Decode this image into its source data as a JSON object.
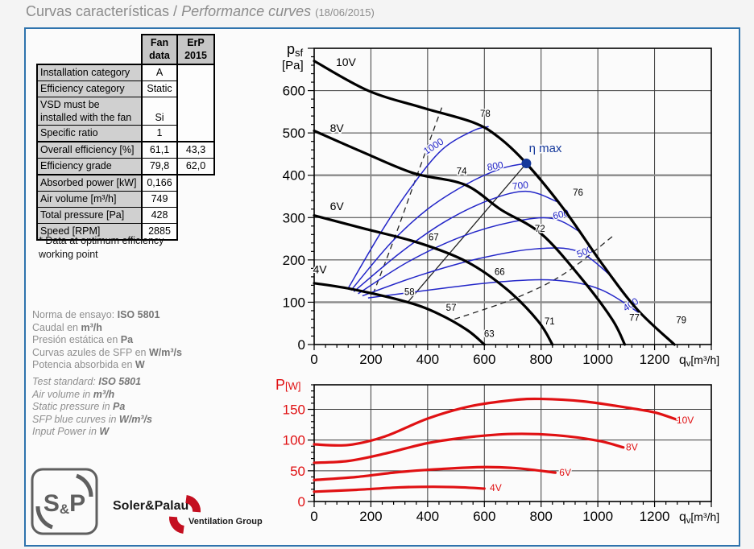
{
  "title": {
    "main": "Curvas características / ",
    "italic": "Performance curves ",
    "date": "(18/06/2015)"
  },
  "table": {
    "col_headers": [
      "Fan\ndata",
      "ErP\n2015"
    ],
    "rows": [
      {
        "label": "Installation category",
        "fan": "A",
        "erp": "",
        "erp_span": 4
      },
      {
        "label": "Efficiency category",
        "fan": "Static"
      },
      {
        "label": "VSD must be installed with the fan",
        "fan": "Si",
        "valign": "bottom"
      },
      {
        "label": "Specific ratio",
        "fan": "1"
      },
      {
        "label": "Overall efficiency [%]",
        "fan": "61,1",
        "erp": "43,3",
        "thick_top": true
      },
      {
        "label": "Efficiency grade",
        "fan": "79,8",
        "erp": "62,0",
        "erp_last": true
      },
      {
        "label": "Absorbed power [kW]",
        "fan": "0,166",
        "no_erp": true,
        "thick_top": true
      },
      {
        "label": "Air volume [m³/h]",
        "fan": "749",
        "no_erp": true
      },
      {
        "label": "Total pressure [Pa]",
        "fan": "428",
        "no_erp": true
      },
      {
        "label": "Speed [RPM]",
        "fan": "2885",
        "no_erp": true
      }
    ],
    "footnote_lines": [
      "* Data at optimum efficiency",
      "working point"
    ]
  },
  "notes_es": [
    {
      "t": "Norma de ensayo: ",
      "b": "ISO 5801"
    },
    {
      "t": "Caudal en ",
      "b": "m³/h"
    },
    {
      "t": "Presión estática en ",
      "b": "Pa"
    },
    {
      "t": "Curvas azules de SFP en ",
      "b": "W/m³/s"
    },
    {
      "t": "Potencia absorbida en ",
      "b": "W"
    }
  ],
  "notes_en": [
    {
      "t": "Test standard: ",
      "b": "ISO 5801"
    },
    {
      "t": "Air volume in ",
      "b": "m³/h"
    },
    {
      "t": "Static pressure in ",
      "b": "Pa"
    },
    {
      "t": "SFP blue curves in ",
      "b": "W/m³/s"
    },
    {
      "t": "Input Power in ",
      "b": "W"
    }
  ],
  "logo": {
    "sp": "S&P",
    "company": "Soler&Palau",
    "group": "Ventilation Group"
  },
  "chart_data": [
    {
      "type": "line",
      "name": "pressure_curves",
      "ylabel": {
        "main": "p",
        "sub": "sf",
        "unit_below": "[Pa]",
        "color": "#000000",
        "pos": [
          26,
          22
        ]
      },
      "xlabel": {
        "main": "q",
        "sub": "v",
        "unit": "[m³/h]",
        "color": "#000000"
      },
      "xlim": [
        0,
        1400
      ],
      "ylim": [
        0,
        700
      ],
      "x_ticks": [
        0,
        200,
        400,
        600,
        800,
        1000,
        1200
      ],
      "y_ticks": [
        0,
        100,
        200,
        300,
        400,
        500,
        600
      ],
      "grid_x": [
        200,
        400,
        600,
        800,
        1000,
        1200
      ],
      "grid_y": [
        200,
        300,
        500,
        600
      ],
      "grid_y_bold": [
        100,
        400
      ],
      "minor_x": 40,
      "major_x": 200,
      "minor_y": 20,
      "major_y": 100,
      "xtick_color": "#000000",
      "ytick_color": "#000000",
      "series_color": "#000000",
      "series_label_fs": 14,
      "series": [
        {
          "name": "4V",
          "points": [
            [
              0,
              145
            ],
            [
              140,
              130
            ],
            [
              330,
              100
            ],
            [
              440,
              72
            ],
            [
              540,
              34
            ],
            [
              600,
              0
            ]
          ],
          "label_at": [
            20,
            168
          ]
        },
        {
          "name": "6V",
          "points": [
            [
              0,
              305
            ],
            [
              170,
              275
            ],
            [
              370,
              240
            ],
            [
              540,
              195
            ],
            [
              680,
              130
            ],
            [
              790,
              55
            ],
            [
              840,
              0
            ]
          ],
          "label_at": [
            80,
            318
          ]
        },
        {
          "name": "8V",
          "points": [
            [
              0,
              505
            ],
            [
              170,
              455
            ],
            [
              350,
              405
            ],
            [
              530,
              378
            ],
            [
              660,
              318
            ],
            [
              800,
              262
            ],
            [
              940,
              158
            ],
            [
              1050,
              60
            ],
            [
              1095,
              0
            ]
          ],
          "label_at": [
            80,
            502
          ]
        },
        {
          "name": "10V",
          "points": [
            [
              0,
              670
            ],
            [
              190,
              600
            ],
            [
              380,
              560
            ],
            [
              560,
              525
            ],
            [
              650,
              490
            ],
            [
              748,
              428
            ],
            [
              880,
              320
            ],
            [
              1020,
              186
            ],
            [
              1140,
              82
            ],
            [
              1270,
              0
            ]
          ],
          "label_at": [
            112,
            658
          ]
        }
      ],
      "sfp": {
        "color": "#2326c8",
        "units": "W/m³/s",
        "curves": [
          {
            "value": 1000,
            "points": [
              [
                120,
                133
              ],
              [
                240,
                270
              ],
              [
                340,
                370
              ],
              [
                450,
                460
              ],
              [
                560,
                505
              ],
              [
                615,
                515
              ]
            ],
            "label_at": [
              427,
              462
            ],
            "rot": -33
          },
          {
            "value": 800,
            "points": [
              [
                130,
                128
              ],
              [
                270,
                240
              ],
              [
                400,
                320
              ],
              [
                540,
                380
              ],
              [
                660,
                416
              ],
              [
                748,
                428
              ]
            ],
            "label_at": [
              640,
              414
            ],
            "rot": -10
          },
          {
            "value": 700,
            "points": [
              [
                140,
                125
              ],
              [
                300,
                215
              ],
              [
                460,
                290
              ],
              [
                620,
                342
              ],
              [
                750,
                362
              ],
              [
                855,
                338
              ]
            ],
            "label_at": [
              728,
              368
            ],
            "rot": -6
          },
          {
            "value": 600,
            "points": [
              [
                155,
                120
              ],
              [
                330,
                195
              ],
              [
                520,
                255
              ],
              [
                700,
                290
              ],
              [
                840,
                298
              ],
              [
                940,
                265
              ]
            ],
            "label_at": [
              872,
              300
            ],
            "rot": -12
          },
          {
            "value": 500,
            "points": [
              [
                170,
                115
              ],
              [
                370,
                163
              ],
              [
                580,
                203
              ],
              [
                780,
                226
              ],
              [
                930,
                220
              ],
              [
                1050,
                160
              ]
            ],
            "label_at": [
              958,
              212
            ],
            "rot": -22
          },
          {
            "value": 400,
            "points": [
              [
                190,
                110
              ],
              [
                420,
                130
              ],
              [
                650,
                148
              ],
              [
                850,
                152
              ],
              [
                1010,
                130
              ],
              [
                1160,
                68
              ]
            ],
            "label_at": [
              1122,
              88
            ],
            "rot": -33
          }
        ]
      },
      "ref_lines": [
        {
          "dashed": false,
          "points": [
            [
              330,
              100
            ],
            [
              748,
              428
            ]
          ]
        },
        {
          "dashed": true,
          "points": [
            [
              450,
              560
            ],
            [
              360,
              395
            ],
            [
              285,
              255
            ],
            [
              208,
              120
            ]
          ]
        },
        {
          "dashed": true,
          "points": [
            [
              495,
              60
            ],
            [
              711,
              110
            ],
            [
              881,
              167
            ],
            [
              1060,
              260
            ]
          ]
        }
      ],
      "point_labels": [
        {
          "t": "78",
          "x": 603,
          "y": 538
        },
        {
          "t": "76",
          "x": 930,
          "y": 352
        },
        {
          "t": "79",
          "x": 1294,
          "y": 50
        },
        {
          "t": "74",
          "x": 520,
          "y": 402
        },
        {
          "t": "72",
          "x": 796,
          "y": 266
        },
        {
          "t": "77",
          "x": 1129,
          "y": 56
        },
        {
          "t": "67",
          "x": 421,
          "y": 246
        },
        {
          "t": "66",
          "x": 654,
          "y": 165
        },
        {
          "t": "71",
          "x": 830,
          "y": 48
        },
        {
          "t": "58",
          "x": 336,
          "y": 117
        },
        {
          "t": "57",
          "x": 483,
          "y": 80
        },
        {
          "t": "63",
          "x": 617,
          "y": 18
        }
      ],
      "eta_max": {
        "x": 748,
        "y": 428,
        "label": "η max",
        "label_at": [
          815,
          455
        ],
        "color": "#16399b"
      },
      "plot": {
        "l": 60,
        "r": 553,
        "t": 15,
        "b": 383
      }
    },
    {
      "type": "line",
      "name": "power_curves",
      "ylabel": {
        "main": "P",
        "unit_inline": "[W]",
        "color": "#e01113",
        "pos": [
          12,
          22
        ]
      },
      "xlabel": {
        "main": "q",
        "sub": "v",
        "unit": "[m³/h]",
        "color": "#000000"
      },
      "xlim": [
        0,
        1400
      ],
      "ylim": [
        0,
        190
      ],
      "x_ticks": [
        0,
        200,
        400,
        600,
        800,
        1000,
        1200
      ],
      "y_ticks": [
        0,
        50,
        100,
        150
      ],
      "grid_x": [
        200,
        400,
        600,
        800,
        1000,
        1200
      ],
      "grid_y": [
        50,
        100,
        150
      ],
      "grid_y_bold": [],
      "minor_x": 40,
      "major_x": 200,
      "minor_y": 10,
      "major_y": 50,
      "xtick_color": "#000000",
      "ytick_color": "#e01113",
      "series_color": "#e01113",
      "series_label_fs": 12,
      "series": [
        {
          "name": "4V",
          "points": [
            [
              0,
              16
            ],
            [
              150,
              19
            ],
            [
              300,
              23
            ],
            [
              420,
              24
            ],
            [
              520,
              23
            ],
            [
              600,
              21
            ]
          ],
          "label_at": [
            640,
            17
          ]
        },
        {
          "name": "6V",
          "points": [
            [
              0,
              35
            ],
            [
              150,
              40
            ],
            [
              300,
              48
            ],
            [
              450,
              53
            ],
            [
              600,
              56
            ],
            [
              720,
              54
            ],
            [
              850,
              47
            ]
          ],
          "label_at": [
            885,
            42
          ]
        },
        {
          "name": "8V",
          "points": [
            [
              0,
              63
            ],
            [
              120,
              66
            ],
            [
              250,
              78
            ],
            [
              400,
              95
            ],
            [
              550,
              105
            ],
            [
              700,
              110
            ],
            [
              850,
              108
            ],
            [
              1000,
              99
            ],
            [
              1090,
              88
            ]
          ],
          "label_at": [
            1120,
            83
          ]
        },
        {
          "name": "10V",
          "points": [
            [
              0,
              93
            ],
            [
              120,
              92
            ],
            [
              250,
              106
            ],
            [
              400,
              135
            ],
            [
              550,
              155
            ],
            [
              700,
              165
            ],
            [
              800,
              167
            ],
            [
              950,
              163
            ],
            [
              1100,
              153
            ],
            [
              1200,
              145
            ],
            [
              1280,
              133
            ]
          ],
          "label_at": [
            1308,
            127
          ]
        }
      ],
      "plot": {
        "l": 60,
        "r": 553,
        "t": 16,
        "b": 161
      }
    }
  ]
}
